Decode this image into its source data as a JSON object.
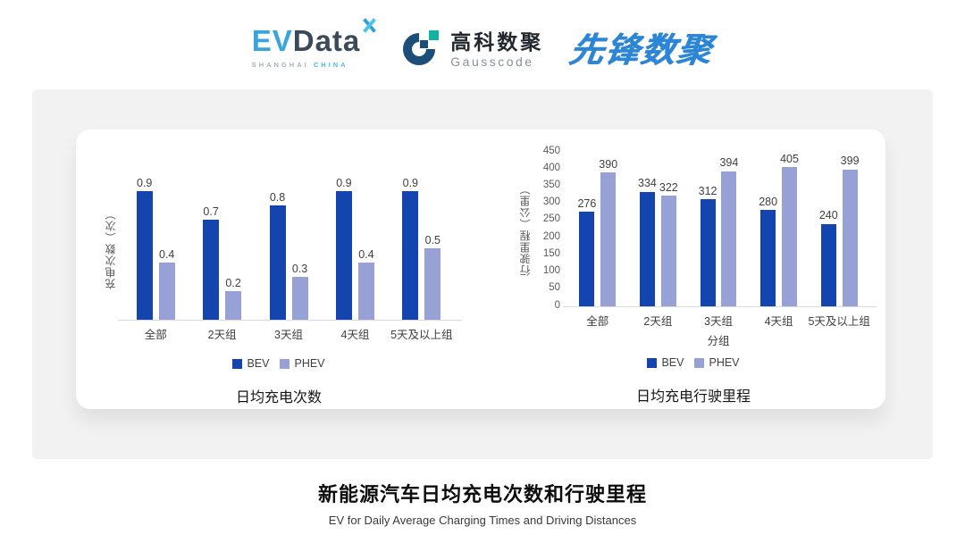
{
  "header": {
    "evdata": {
      "part1": "EV",
      "part2": "Data",
      "sub1": "SHANGHAI",
      "sub2": "CHINA"
    },
    "gausscode": {
      "name_cn": "高科数聚",
      "name_en": "Gausscode"
    },
    "pioneer": {
      "name": "先锋数聚"
    }
  },
  "chart_data": [
    {
      "type": "bar",
      "title": "日均充电次数",
      "ylabel": "充电次数（次）",
      "xlabel": "",
      "categories": [
        "全部",
        "2天组",
        "3天组",
        "4天组",
        "5天及以上组"
      ],
      "series": [
        {
          "name": "BEV",
          "color": "#1444ad",
          "values": [
            0.9,
            0.7,
            0.8,
            0.9,
            0.9
          ]
        },
        {
          "name": "PHEV",
          "color": "#97a1d6",
          "values": [
            0.4,
            0.2,
            0.3,
            0.4,
            0.5
          ]
        }
      ],
      "ylim": [
        0,
        1
      ],
      "yticks": [],
      "grid": false,
      "legend_position": "bottom"
    },
    {
      "type": "bar",
      "title": "日均充电行驶里程",
      "ylabel": "行驶里程（公里）",
      "xlabel": "分组",
      "categories": [
        "全部",
        "2天组",
        "3天组",
        "4天组",
        "5天及以上组"
      ],
      "series": [
        {
          "name": "BEV",
          "color": "#1444ad",
          "values": [
            276,
            334,
            312,
            280,
            240
          ]
        },
        {
          "name": "PHEV",
          "color": "#97a1d6",
          "values": [
            390,
            322,
            394,
            405,
            399
          ]
        }
      ],
      "ylim": [
        0,
        450
      ],
      "yticks": [
        0,
        50,
        100,
        150,
        200,
        250,
        300,
        350,
        400,
        450
      ],
      "grid": false,
      "legend_position": "bottom"
    }
  ],
  "footer": {
    "title": "新能源汽车日均充电次数和行驶里程",
    "subtitle": "EV for Daily Average Charging Times and Driving Distances"
  },
  "colors": {
    "bev": "#1444ad",
    "phev": "#97a1d6",
    "panel": "#f2f2f2"
  }
}
